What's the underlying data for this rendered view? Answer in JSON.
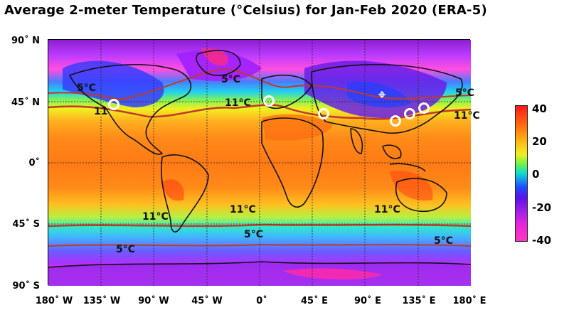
{
  "title": "Average 2-meter Temperature (°Celsius) for Jan-Feb 2020 (ERA-5)",
  "lat_labels": [
    "90˚ N",
    "45˚ N",
    "0˚",
    "45˚ S",
    "90˚ S"
  ],
  "lon_labels": [
    "180˚ W",
    "135˚ W",
    "90˚ W",
    "45˚ W",
    "0˚",
    "45˚ E",
    "90˚ E",
    "135˚ E",
    "180˚ E"
  ],
  "colorbar": {
    "ticks": [
      "40",
      "20",
      "0",
      "-20",
      "-40"
    ],
    "colors": [
      "#ff1a1a",
      "#ff6a10",
      "#ffb515",
      "#eef020",
      "#5ef057",
      "#10d9d0",
      "#1d4dff",
      "#5a12e8",
      "#a21fe8",
      "#e626d9",
      "#ff38c2"
    ]
  },
  "contour_labels": {
    "n5_west": "5°C",
    "n11_west": "11",
    "n5_atl": "5°C",
    "n11_europe": "11°C",
    "n5_east": "5°C",
    "n11_east": "11°C",
    "s11_sa": "11°C",
    "s11_atl": "11°C",
    "s11_io": "11°C",
    "s5_sa": "5°C",
    "s5_atl": "5°C",
    "s5_pac": "5°C"
  },
  "contour_colors": {
    "line": "#c0392b",
    "coast": "#111111",
    "marker": "#ffffff"
  }
}
